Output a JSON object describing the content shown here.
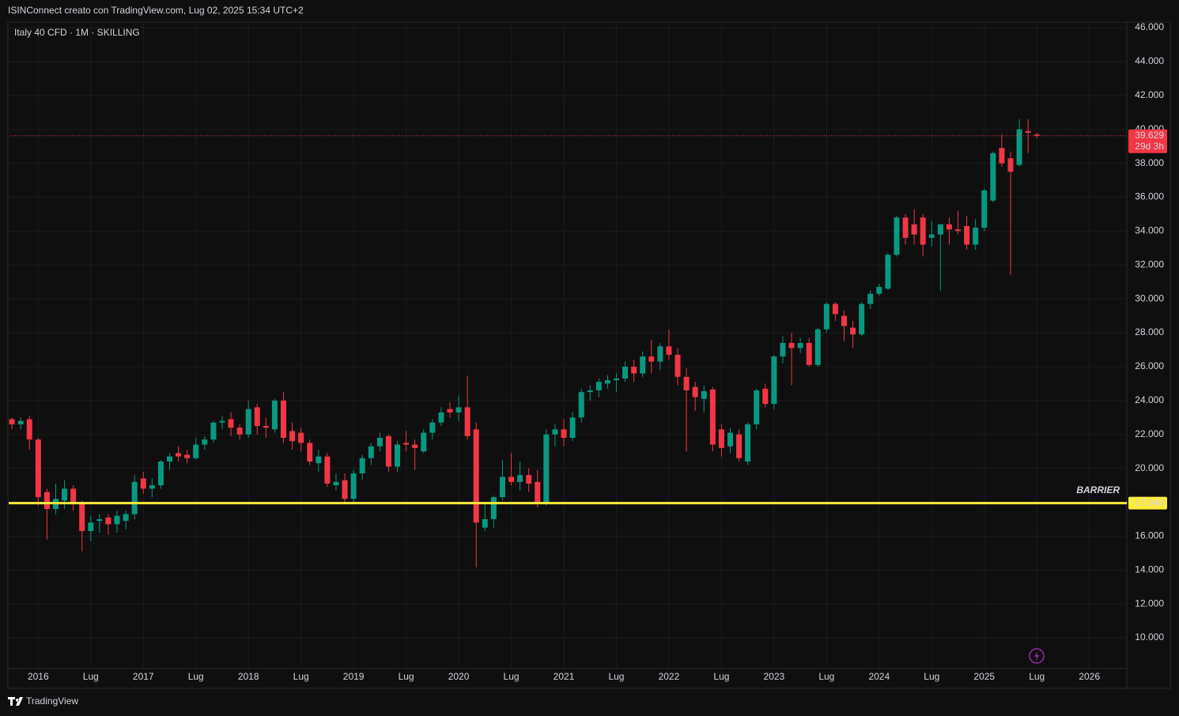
{
  "header": "ISINConnect creato con TradingView.com, Lug 02, 2025 15:34 UTC+2",
  "footer": "TradingView",
  "chart_data": {
    "type": "candlestick",
    "title": "Italy 40 CFD · 1M · SKILLING",
    "up_color": "#089981",
    "down_color": "#f23645",
    "grid": true,
    "ylim": [
      8230,
      46330
    ],
    "yticks": [
      {
        "value": 10000,
        "label": "10.000"
      },
      {
        "value": 12000,
        "label": "12.000"
      },
      {
        "value": 14000,
        "label": "14.000"
      },
      {
        "value": 16000,
        "label": "16.000"
      },
      {
        "value": 18000,
        "label": "18.000"
      },
      {
        "value": 20000,
        "label": "20.000"
      },
      {
        "value": 22000,
        "label": "22.000"
      },
      {
        "value": 24000,
        "label": "24.000"
      },
      {
        "value": 26000,
        "label": "26.000"
      },
      {
        "value": 28000,
        "label": "28.000"
      },
      {
        "value": 30000,
        "label": "30.000"
      },
      {
        "value": 32000,
        "label": "32.000"
      },
      {
        "value": 34000,
        "label": "34.000"
      },
      {
        "value": 36000,
        "label": "36.000"
      },
      {
        "value": 38000,
        "label": "38.000"
      },
      {
        "value": 40000,
        "label": "40.000"
      },
      {
        "value": 42000,
        "label": "42.000"
      },
      {
        "value": 44000,
        "label": "44.000"
      },
      {
        "value": 46000,
        "label": "46.000"
      }
    ],
    "xlim": [
      "2015-09",
      "2026-05"
    ],
    "xticks": [
      {
        "value": "2016-01",
        "label": "2016"
      },
      {
        "value": "2016-07",
        "label": "Lug"
      },
      {
        "value": "2017-01",
        "label": "2017"
      },
      {
        "value": "2017-07",
        "label": "Lug"
      },
      {
        "value": "2018-01",
        "label": "2018"
      },
      {
        "value": "2018-07",
        "label": "Lug"
      },
      {
        "value": "2019-01",
        "label": "2019"
      },
      {
        "value": "2019-07",
        "label": "Lug"
      },
      {
        "value": "2020-01",
        "label": "2020"
      },
      {
        "value": "2020-07",
        "label": "Lug"
      },
      {
        "value": "2021-01",
        "label": "2021"
      },
      {
        "value": "2021-07",
        "label": "Lug"
      },
      {
        "value": "2022-01",
        "label": "2022"
      },
      {
        "value": "2022-07",
        "label": "Lug"
      },
      {
        "value": "2023-01",
        "label": "2023"
      },
      {
        "value": "2023-07",
        "label": "Lug"
      },
      {
        "value": "2024-01",
        "label": "2024"
      },
      {
        "value": "2024-07",
        "label": "Lug"
      },
      {
        "value": "2025-01",
        "label": "2025"
      },
      {
        "value": "2025-07",
        "label": "Lug"
      },
      {
        "value": "2026-01",
        "label": "2026"
      }
    ],
    "last_price": {
      "value": 39629,
      "label": "39.629",
      "color": "#f23645"
    },
    "countdown": "29d 3h",
    "barrier": {
      "value": 17948,
      "label": "17.948",
      "text": "BARRIER",
      "color": "#ffeb3b"
    },
    "x": [
      "2015-10",
      "2015-11",
      "2015-12",
      "2016-01",
      "2016-02",
      "2016-03",
      "2016-04",
      "2016-05",
      "2016-06",
      "2016-07",
      "2016-08",
      "2016-09",
      "2016-10",
      "2016-11",
      "2016-12",
      "2017-01",
      "2017-02",
      "2017-03",
      "2017-04",
      "2017-05",
      "2017-06",
      "2017-07",
      "2017-08",
      "2017-09",
      "2017-10",
      "2017-11",
      "2017-12",
      "2018-01",
      "2018-02",
      "2018-03",
      "2018-04",
      "2018-05",
      "2018-06",
      "2018-07",
      "2018-08",
      "2018-09",
      "2018-10",
      "2018-11",
      "2018-12",
      "2019-01",
      "2019-02",
      "2019-03",
      "2019-04",
      "2019-05",
      "2019-06",
      "2019-07",
      "2019-08",
      "2019-09",
      "2019-10",
      "2019-11",
      "2019-12",
      "2020-01",
      "2020-02",
      "2020-03",
      "2020-04",
      "2020-05",
      "2020-06",
      "2020-07",
      "2020-08",
      "2020-09",
      "2020-10",
      "2020-11",
      "2020-12",
      "2021-01",
      "2021-02",
      "2021-03",
      "2021-04",
      "2021-05",
      "2021-06",
      "2021-07",
      "2021-08",
      "2021-09",
      "2021-10",
      "2021-11",
      "2021-12",
      "2022-01",
      "2022-02",
      "2022-03",
      "2022-04",
      "2022-05",
      "2022-06",
      "2022-07",
      "2022-08",
      "2022-09",
      "2022-10",
      "2022-11",
      "2022-12",
      "2023-01",
      "2023-02",
      "2023-03",
      "2023-04",
      "2023-05",
      "2023-06",
      "2023-07",
      "2023-08",
      "2023-09",
      "2023-10",
      "2023-11",
      "2023-12",
      "2024-01",
      "2024-02",
      "2024-03",
      "2024-04",
      "2024-05",
      "2024-06",
      "2024-07",
      "2024-08",
      "2024-09",
      "2024-10",
      "2024-11",
      "2024-12",
      "2025-01",
      "2025-02",
      "2025-03",
      "2025-04",
      "2025-05",
      "2025-06",
      "2025-07"
    ],
    "ohlc": [
      [
        22900,
        23000,
        22300,
        22600
      ],
      [
        22600,
        23000,
        22300,
        22800
      ],
      [
        22900,
        23100,
        21100,
        21700
      ],
      [
        21700,
        21800,
        17800,
        18300
      ],
      [
        18600,
        18800,
        15800,
        17600
      ],
      [
        17600,
        19100,
        17300,
        18200
      ],
      [
        18100,
        19300,
        17600,
        18800
      ],
      [
        18800,
        19000,
        17500,
        17900
      ],
      [
        17900,
        18100,
        15100,
        16300
      ],
      [
        16300,
        17200,
        15700,
        16800
      ],
      [
        16900,
        17300,
        16200,
        17000
      ],
      [
        17100,
        17300,
        16100,
        16700
      ],
      [
        16700,
        17500,
        16200,
        17200
      ],
      [
        16900,
        17500,
        16400,
        17300
      ],
      [
        17300,
        19600,
        17000,
        19200
      ],
      [
        19400,
        19800,
        18500,
        18800
      ],
      [
        18800,
        19400,
        18300,
        19000
      ],
      [
        19000,
        20500,
        18800,
        20400
      ],
      [
        20400,
        20900,
        19900,
        20700
      ],
      [
        20900,
        21300,
        20400,
        20700
      ],
      [
        20800,
        21100,
        20300,
        20600
      ],
      [
        20600,
        21800,
        20500,
        21400
      ],
      [
        21400,
        21900,
        21100,
        21700
      ],
      [
        21700,
        22800,
        21500,
        22700
      ],
      [
        22700,
        23100,
        22300,
        22800
      ],
      [
        22900,
        23300,
        21900,
        22400
      ],
      [
        22400,
        22600,
        21700,
        22000
      ],
      [
        22000,
        24000,
        21800,
        23500
      ],
      [
        23600,
        23800,
        22000,
        22500
      ],
      [
        22500,
        23000,
        21800,
        22400
      ],
      [
        22300,
        24100,
        22100,
        24000
      ],
      [
        24000,
        24500,
        21500,
        21800
      ],
      [
        22200,
        22700,
        21100,
        21600
      ],
      [
        22100,
        22400,
        21000,
        21500
      ],
      [
        21500,
        21700,
        20200,
        20400
      ],
      [
        20300,
        21100,
        19800,
        20700
      ],
      [
        20700,
        20900,
        18900,
        19100
      ],
      [
        19000,
        19700,
        18700,
        19200
      ],
      [
        19300,
        19700,
        17900,
        18200
      ],
      [
        18200,
        19900,
        17900,
        19700
      ],
      [
        19700,
        20800,
        19300,
        20600
      ],
      [
        20600,
        21500,
        20200,
        21300
      ],
      [
        21300,
        22100,
        21000,
        21800
      ],
      [
        21900,
        22000,
        19800,
        20100
      ],
      [
        20100,
        21600,
        19800,
        21400
      ],
      [
        21500,
        22200,
        21000,
        21400
      ],
      [
        21400,
        21700,
        19900,
        21200
      ],
      [
        21000,
        22300,
        20900,
        22100
      ],
      [
        22100,
        22900,
        21700,
        22700
      ],
      [
        22700,
        23600,
        22500,
        23300
      ],
      [
        23500,
        23900,
        23000,
        23300
      ],
      [
        23300,
        24300,
        22800,
        23600
      ],
      [
        23600,
        25470,
        21700,
        21900
      ],
      [
        22300,
        22700,
        14150,
        16800
      ],
      [
        16500,
        18000,
        16300,
        17000
      ],
      [
        17000,
        18400,
        16500,
        18300
      ],
      [
        18300,
        20500,
        18100,
        19500
      ],
      [
        19500,
        20900,
        19000,
        19200
      ],
      [
        19200,
        20400,
        18700,
        19600
      ],
      [
        19600,
        20000,
        18600,
        19100
      ],
      [
        19200,
        19900,
        17700,
        18000
      ],
      [
        18000,
        22300,
        17800,
        22000
      ],
      [
        22000,
        22600,
        21300,
        22300
      ],
      [
        22300,
        22900,
        21300,
        21800
      ],
      [
        21800,
        23300,
        21600,
        23000
      ],
      [
        23000,
        24700,
        22700,
        24500
      ],
      [
        24500,
        24900,
        24000,
        24600
      ],
      [
        24600,
        25300,
        24200,
        25100
      ],
      [
        25000,
        25500,
        24700,
        25200
      ],
      [
        25200,
        25600,
        24500,
        25300
      ],
      [
        25300,
        26300,
        25100,
        26000
      ],
      [
        26000,
        26400,
        25100,
        25600
      ],
      [
        25600,
        26900,
        25400,
        26600
      ],
      [
        26600,
        27600,
        25600,
        26300
      ],
      [
        26300,
        27400,
        25800,
        27200
      ],
      [
        27200,
        28200,
        26400,
        26700
      ],
      [
        26700,
        27100,
        24900,
        25400
      ],
      [
        25400,
        25900,
        21000,
        24600
      ],
      [
        24800,
        25100,
        23400,
        24200
      ],
      [
        24100,
        24900,
        23300,
        24550
      ],
      [
        24650,
        24800,
        21000,
        21400
      ],
      [
        22300,
        22600,
        20700,
        21200
      ],
      [
        21300,
        22400,
        20900,
        22100
      ],
      [
        22000,
        22300,
        20400,
        20600
      ],
      [
        20400,
        22700,
        20200,
        22600
      ],
      [
        22600,
        24700,
        22300,
        24600
      ],
      [
        24700,
        25000,
        23600,
        23800
      ],
      [
        23800,
        26700,
        23500,
        26600
      ],
      [
        26600,
        27800,
        26200,
        27400
      ],
      [
        27400,
        28000,
        24900,
        27100
      ],
      [
        27100,
        27700,
        26800,
        27400
      ],
      [
        27400,
        27700,
        26000,
        26100
      ],
      [
        26100,
        28300,
        26000,
        28200
      ],
      [
        28200,
        29800,
        28000,
        29700
      ],
      [
        29700,
        29800,
        28700,
        29100
      ],
      [
        29000,
        29300,
        27500,
        28400
      ],
      [
        28300,
        28700,
        27100,
        27900
      ],
      [
        27900,
        29800,
        27800,
        29700
      ],
      [
        29700,
        30500,
        29400,
        30300
      ],
      [
        30300,
        30900,
        30200,
        30700
      ],
      [
        30600,
        32700,
        30500,
        32600
      ],
      [
        32600,
        34900,
        32500,
        34800
      ],
      [
        34800,
        35000,
        33200,
        33600
      ],
      [
        34400,
        35300,
        33200,
        33800
      ],
      [
        34800,
        35000,
        32500,
        33200
      ],
      [
        33600,
        34600,
        33100,
        33800
      ],
      [
        33800,
        34400,
        30500,
        34400
      ],
      [
        34400,
        34800,
        33200,
        34100
      ],
      [
        34100,
        35200,
        33800,
        34000
      ],
      [
        34300,
        34900,
        32900,
        33200
      ],
      [
        33200,
        34700,
        32900,
        34200
      ],
      [
        34200,
        36500,
        34000,
        36400
      ],
      [
        35800,
        38700,
        35700,
        38600
      ],
      [
        38900,
        39700,
        37800,
        38000
      ],
      [
        38300,
        38700,
        31400,
        37500
      ],
      [
        37900,
        40600,
        37800,
        40000
      ],
      [
        39900,
        40600,
        38600,
        39800
      ],
      [
        39700,
        39800,
        39500,
        39629
      ]
    ]
  }
}
